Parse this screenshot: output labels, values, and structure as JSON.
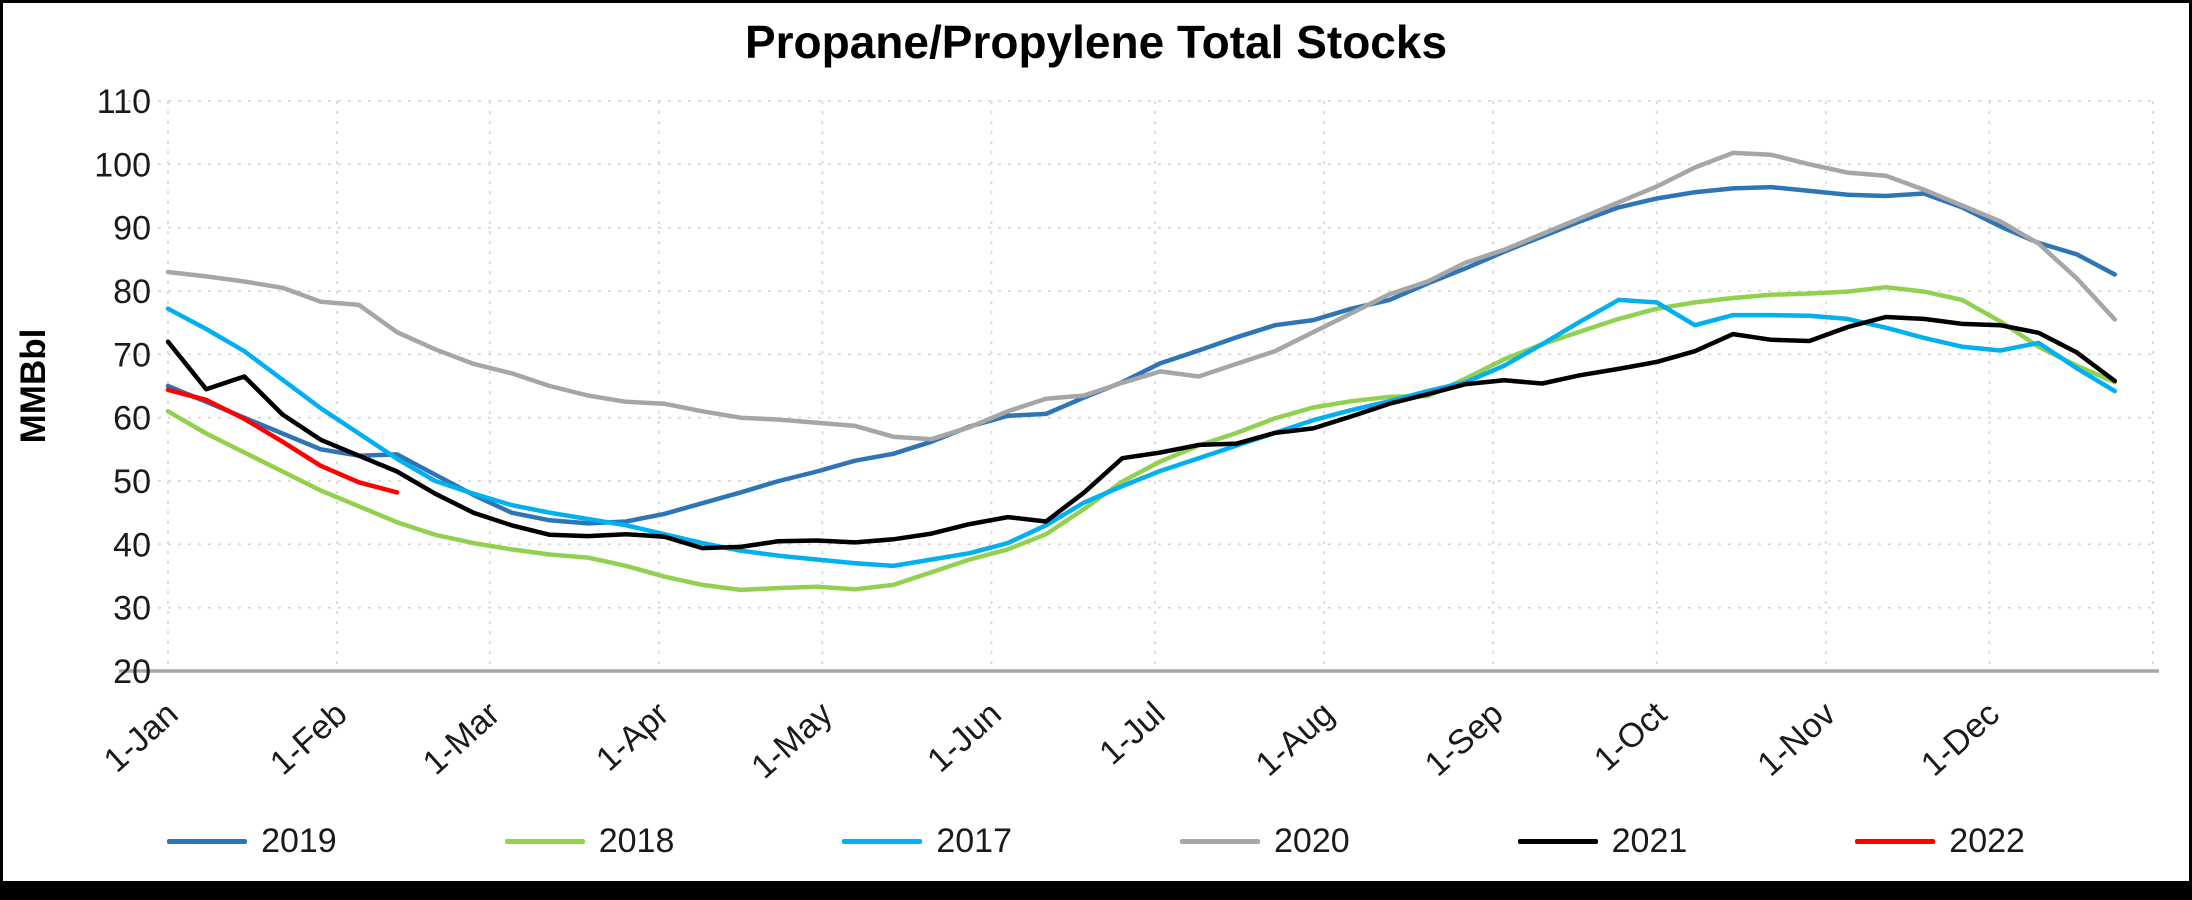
{
  "chart_data": {
    "type": "line",
    "title": "Propane/Propylene Total Stocks",
    "ylabel": "MMBbl",
    "ylim": [
      20,
      110
    ],
    "yticks": [
      20,
      30,
      40,
      50,
      60,
      70,
      80,
      90,
      100,
      110
    ],
    "grid": true,
    "legend_position": "bottom",
    "x_unit": "week_of_year",
    "days_per_year": 364,
    "xtick_labels": [
      "1-Jan",
      "1-Feb",
      "1-Mar",
      "1-Apr",
      "1-May",
      "1-Jun",
      "1-Jul",
      "1-Aug",
      "1-Sep",
      "1-Oct",
      "1-Nov",
      "1-Dec"
    ],
    "xtick_days": [
      0,
      31,
      59,
      90,
      120,
      151,
      181,
      212,
      243,
      273,
      304,
      334
    ],
    "series": [
      {
        "name": "2019",
        "color": "#2E75B6",
        "values": [
          65,
          62.5,
          60,
          57.5,
          55,
          54,
          54.2,
          51,
          47.8,
          45,
          43.8,
          43.3,
          43.6,
          44.8,
          46.5,
          48.2,
          50,
          51.5,
          53.2,
          54.3,
          56.2,
          58.6,
          60.3,
          60.6,
          63.2,
          65.6,
          68.6,
          70.6,
          72.7,
          74.6,
          75.4,
          77.2,
          78.6,
          81.2,
          83.6,
          86.2,
          88.6,
          91,
          93.2,
          94.6,
          95.6,
          96.2,
          96.4,
          95.8,
          95.2,
          95,
          95.4,
          93.2,
          90.2,
          87.6,
          85.8,
          82.6
        ]
      },
      {
        "name": "2018",
        "color": "#92D050",
        "values": [
          61,
          57.5,
          54.5,
          51.5,
          48.5,
          46,
          43.5,
          41.5,
          40.2,
          39.2,
          38.4,
          37.9,
          36.6,
          34.9,
          33.6,
          32.8,
          33.1,
          33.3,
          32.9,
          33.6,
          35.6,
          37.6,
          39.2,
          41.6,
          45.6,
          49.9,
          53.1,
          55.6,
          57.6,
          59.9,
          61.6,
          62.6,
          63.3,
          63.4,
          66.2,
          69.2,
          71.6,
          73.6,
          75.6,
          77.2,
          78.2,
          78.9,
          79.4,
          79.6,
          79.9,
          80.6,
          79.9,
          78.6,
          75.2,
          71.2,
          68.2,
          65.6
        ]
      },
      {
        "name": "2017",
        "color": "#00B0F0",
        "values": [
          77.2,
          74,
          70.5,
          66,
          61.5,
          57.5,
          53.5,
          50,
          48,
          46.2,
          45,
          44,
          43,
          41.6,
          40.2,
          39,
          38.2,
          37.6,
          37,
          36.6,
          37.6,
          38.6,
          40.2,
          43,
          46.6,
          49.2,
          51.6,
          53.6,
          55.6,
          57.6,
          59.6,
          61.2,
          62.6,
          64.2,
          65.6,
          68.2,
          71.6,
          75.2,
          78.6,
          78.2,
          74.6,
          76.2,
          76.2,
          76.1,
          75.6,
          74.2,
          72.6,
          71.2,
          70.6,
          71.8,
          67.8,
          64.2
        ]
      },
      {
        "name": "2020",
        "color": "#A6A6A6",
        "values": [
          83,
          82.3,
          81.5,
          80.5,
          78.3,
          77.8,
          73.5,
          70.8,
          68.5,
          67,
          65,
          63.5,
          62.5,
          62.2,
          61,
          60,
          59.7,
          59.2,
          58.7,
          57,
          56.6,
          58.5,
          61,
          63,
          63.5,
          65.5,
          67.3,
          66.5,
          68.5,
          70.5,
          73.5,
          76.5,
          79.5,
          81.5,
          84.5,
          86.5,
          89,
          91.5,
          94,
          96.5,
          99.5,
          101.8,
          101.5,
          100,
          98.7,
          98.2,
          96,
          93.5,
          91,
          87.5,
          82,
          75.5
        ]
      },
      {
        "name": "2021",
        "color": "#000000",
        "values": [
          72,
          64.5,
          66.5,
          60.5,
          56.5,
          54,
          51.5,
          48,
          45,
          43,
          41.5,
          41.3,
          41.6,
          41.2,
          39.4,
          39.6,
          40.5,
          40.6,
          40.3,
          40.8,
          41.7,
          43.2,
          44.3,
          43.6,
          48.2,
          53.6,
          54.5,
          55.7,
          55.9,
          57.6,
          58.3,
          60.2,
          62.2,
          63.7,
          65.3,
          65.9,
          65.4,
          66.7,
          67.7,
          68.8,
          70.5,
          73.2,
          72.3,
          72.1,
          74.3,
          75.9,
          75.6,
          74.8,
          74.6,
          73.4,
          70.3,
          65.8
        ]
      },
      {
        "name": "2022",
        "color": "#FF0000",
        "values": [
          64.4,
          62.8,
          59.8,
          56.2,
          52.4,
          49.8,
          48.2
        ]
      }
    ]
  }
}
